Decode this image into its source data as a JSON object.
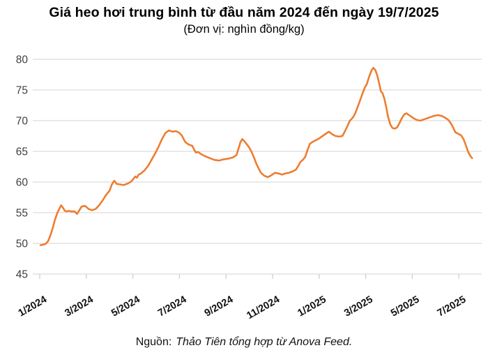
{
  "header": {
    "title": "Giá heo hơi trung bình từ đầu năm 2024 đến ngày 19/7/2025",
    "subtitle": "(Đơn vị: nghìn đồng/kg)"
  },
  "footer": {
    "source_label": "Nguồn:",
    "source_text": "Thảo Tiên tổng hợp từ Anova Feed."
  },
  "chart_data": {
    "type": "line",
    "title": "Giá heo hơi trung bình từ đầu năm 2024 đến ngày 19/7/2025",
    "subtitle": "(Đơn vị: nghìn đồng/kg)",
    "ylabel": "nghìn đồng/kg",
    "xlabel": "",
    "ylim": [
      45,
      80
    ],
    "y_ticks": [
      45,
      50,
      55,
      60,
      65,
      70,
      75,
      80
    ],
    "x_ticks": [
      {
        "m": 0,
        "label": "1/2024"
      },
      {
        "m": 2,
        "label": "3/2024"
      },
      {
        "m": 4,
        "label": "5/2024"
      },
      {
        "m": 6,
        "label": "7/2024"
      },
      {
        "m": 8,
        "label": "9/2024"
      },
      {
        "m": 10,
        "label": "11/2024"
      },
      {
        "m": 12,
        "label": "1/2025"
      },
      {
        "m": 14,
        "label": "3/2025"
      },
      {
        "m": 16,
        "label": "5/2025"
      },
      {
        "m": 18,
        "label": "7/2025"
      }
    ],
    "grid": "horizontal",
    "legend": "none",
    "colors": {
      "line": "#ED7D31",
      "grid": "#dcdcdc",
      "axis": "#cfcfcf",
      "y_tick_label": "#3f3f3f",
      "x_tick_label": "#111111"
    },
    "series": [
      {
        "name": "Giá heo hơi trung bình (nghìn đồng/kg)",
        "x_unit": "months since 1/2024",
        "points": [
          [
            0.03,
            49.7
          ],
          [
            0.15,
            49.8
          ],
          [
            0.25,
            49.9
          ],
          [
            0.35,
            50.3
          ],
          [
            0.45,
            51.2
          ],
          [
            0.55,
            52.4
          ],
          [
            0.65,
            53.8
          ],
          [
            0.75,
            54.9
          ],
          [
            0.85,
            55.7
          ],
          [
            0.92,
            56.2
          ],
          [
            1.0,
            55.8
          ],
          [
            1.08,
            55.3
          ],
          [
            1.15,
            55.2
          ],
          [
            1.25,
            55.3
          ],
          [
            1.35,
            55.2
          ],
          [
            1.5,
            55.2
          ],
          [
            1.6,
            54.8
          ],
          [
            1.7,
            55.4
          ],
          [
            1.8,
            56.0
          ],
          [
            1.95,
            56.1
          ],
          [
            2.1,
            55.6
          ],
          [
            2.25,
            55.4
          ],
          [
            2.4,
            55.6
          ],
          [
            2.55,
            56.2
          ],
          [
            2.7,
            57.0
          ],
          [
            2.85,
            57.9
          ],
          [
            3.0,
            58.6
          ],
          [
            3.1,
            59.6
          ],
          [
            3.2,
            60.2
          ],
          [
            3.3,
            59.7
          ],
          [
            3.45,
            59.6
          ],
          [
            3.6,
            59.5
          ],
          [
            3.75,
            59.7
          ],
          [
            3.9,
            60.0
          ],
          [
            4.0,
            60.4
          ],
          [
            4.1,
            60.9
          ],
          [
            4.17,
            60.7
          ],
          [
            4.25,
            61.2
          ],
          [
            4.35,
            61.4
          ],
          [
            4.5,
            61.9
          ],
          [
            4.65,
            62.6
          ],
          [
            4.8,
            63.6
          ],
          [
            4.95,
            64.6
          ],
          [
            5.1,
            65.7
          ],
          [
            5.25,
            67.0
          ],
          [
            5.4,
            68.0
          ],
          [
            5.55,
            68.4
          ],
          [
            5.7,
            68.2
          ],
          [
            5.85,
            68.3
          ],
          [
            6.0,
            68.0
          ],
          [
            6.1,
            67.6
          ],
          [
            6.25,
            66.5
          ],
          [
            6.4,
            66.1
          ],
          [
            6.55,
            65.9
          ],
          [
            6.7,
            64.8
          ],
          [
            6.8,
            64.9
          ],
          [
            6.95,
            64.5
          ],
          [
            7.1,
            64.2
          ],
          [
            7.3,
            63.9
          ],
          [
            7.5,
            63.6
          ],
          [
            7.7,
            63.5
          ],
          [
            7.9,
            63.7
          ],
          [
            8.1,
            63.8
          ],
          [
            8.3,
            64.0
          ],
          [
            8.45,
            64.4
          ],
          [
            8.55,
            65.6
          ],
          [
            8.62,
            66.5
          ],
          [
            8.7,
            67.0
          ],
          [
            8.8,
            66.6
          ],
          [
            8.9,
            66.1
          ],
          [
            9.0,
            65.6
          ],
          [
            9.1,
            64.9
          ],
          [
            9.2,
            64.0
          ],
          [
            9.3,
            63.0
          ],
          [
            9.4,
            62.2
          ],
          [
            9.5,
            61.5
          ],
          [
            9.65,
            61.0
          ],
          [
            9.8,
            60.8
          ],
          [
            9.95,
            61.1
          ],
          [
            10.1,
            61.5
          ],
          [
            10.25,
            61.4
          ],
          [
            10.4,
            61.2
          ],
          [
            10.55,
            61.4
          ],
          [
            10.7,
            61.5
          ],
          [
            10.85,
            61.7
          ],
          [
            11.0,
            62.0
          ],
          [
            11.1,
            62.6
          ],
          [
            11.2,
            63.3
          ],
          [
            11.3,
            63.6
          ],
          [
            11.4,
            64.1
          ],
          [
            11.5,
            65.2
          ],
          [
            11.6,
            66.2
          ],
          [
            11.7,
            66.5
          ],
          [
            11.85,
            66.8
          ],
          [
            12.0,
            67.1
          ],
          [
            12.15,
            67.5
          ],
          [
            12.3,
            67.9
          ],
          [
            12.42,
            68.2
          ],
          [
            12.55,
            67.8
          ],
          [
            12.7,
            67.5
          ],
          [
            12.85,
            67.4
          ],
          [
            13.0,
            67.5
          ],
          [
            13.1,
            68.2
          ],
          [
            13.2,
            69.0
          ],
          [
            13.32,
            70.0
          ],
          [
            13.45,
            70.5
          ],
          [
            13.55,
            71.2
          ],
          [
            13.7,
            72.7
          ],
          [
            13.85,
            74.3
          ],
          [
            13.95,
            75.3
          ],
          [
            14.05,
            76.0
          ],
          [
            14.15,
            77.2
          ],
          [
            14.25,
            78.2
          ],
          [
            14.33,
            78.6
          ],
          [
            14.42,
            78.2
          ],
          [
            14.5,
            77.3
          ],
          [
            14.58,
            76.0
          ],
          [
            14.65,
            74.8
          ],
          [
            14.72,
            74.5
          ],
          [
            14.8,
            73.6
          ],
          [
            14.88,
            72.2
          ],
          [
            14.95,
            70.8
          ],
          [
            15.05,
            69.4
          ],
          [
            15.15,
            68.8
          ],
          [
            15.25,
            68.7
          ],
          [
            15.35,
            68.9
          ],
          [
            15.45,
            69.6
          ],
          [
            15.55,
            70.4
          ],
          [
            15.65,
            71.0
          ],
          [
            15.75,
            71.2
          ],
          [
            15.9,
            70.8
          ],
          [
            16.05,
            70.4
          ],
          [
            16.2,
            70.1
          ],
          [
            16.35,
            70.0
          ],
          [
            16.5,
            70.2
          ],
          [
            16.65,
            70.4
          ],
          [
            16.8,
            70.6
          ],
          [
            16.95,
            70.8
          ],
          [
            17.1,
            70.9
          ],
          [
            17.25,
            70.8
          ],
          [
            17.4,
            70.5
          ],
          [
            17.55,
            70.1
          ],
          [
            17.65,
            69.6
          ],
          [
            17.75,
            68.9
          ],
          [
            17.85,
            68.1
          ],
          [
            17.95,
            67.9
          ],
          [
            18.1,
            67.6
          ],
          [
            18.2,
            67.0
          ],
          [
            18.3,
            66.0
          ],
          [
            18.4,
            64.9
          ],
          [
            18.5,
            64.2
          ],
          [
            18.57,
            63.9
          ]
        ]
      }
    ]
  }
}
